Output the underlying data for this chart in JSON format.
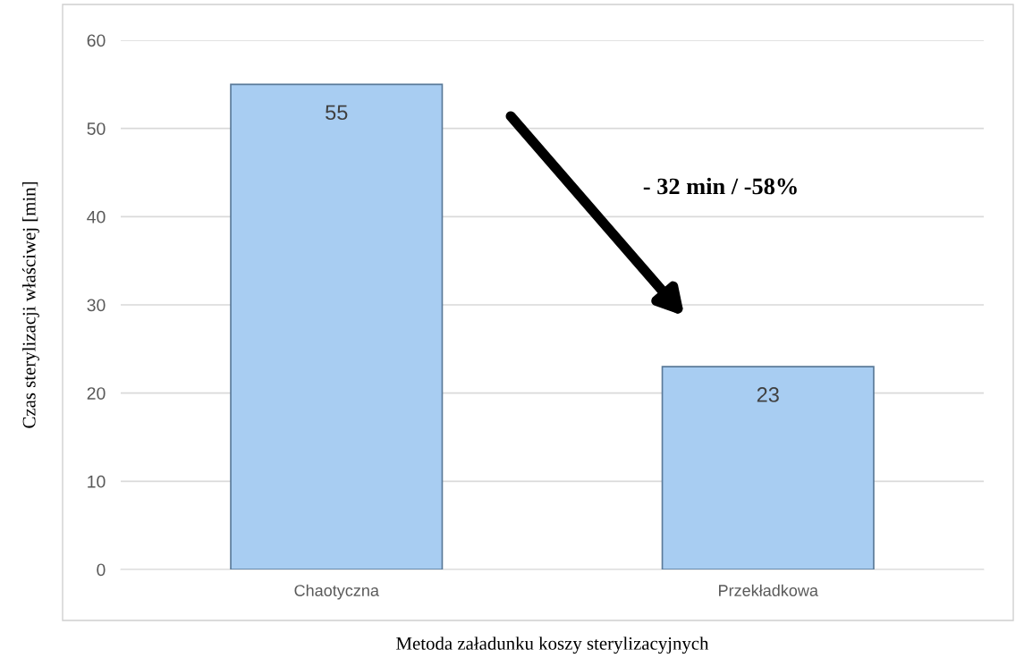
{
  "chart_data": {
    "type": "bar",
    "xlabel": "Metoda załadunku koszy sterylizacyjnych",
    "ylabel": "Czas sterylizacji właściwej [min]",
    "categories": [
      "Chaotyczna",
      "Przekładkowa"
    ],
    "values": [
      55,
      23
    ],
    "color": "#a8cdf2",
    "ylim": [
      0,
      60
    ],
    "yticks": [
      0,
      10,
      20,
      30,
      40,
      50,
      60
    ],
    "grid": "y",
    "data_labels": true,
    "annotations": [
      "- 32 min / -58%"
    ]
  }
}
